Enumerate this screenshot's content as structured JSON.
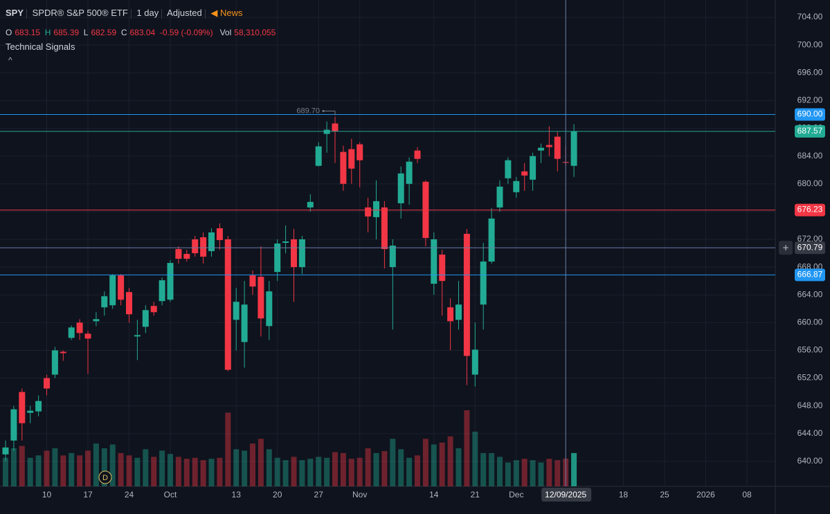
{
  "header": {
    "symbol": "SPY",
    "name": "SPDR® S&P 500® ETF",
    "interval": "1 day",
    "adjustment": "Adjusted",
    "news": "News"
  },
  "legend": {
    "o_label": "O",
    "o": "683.15",
    "h_label": "H",
    "h": "685.39",
    "l_label": "L",
    "l": "682.59",
    "c_label": "C",
    "c": "683.04",
    "change": "-0.59 (-0.09%)",
    "vol_label": "Vol",
    "vol": "58,310,055"
  },
  "indicator": "Technical Signals",
  "chart_data": {
    "type": "candlestick",
    "categories": [
      null,
      null,
      null,
      null,
      null,
      "10",
      null,
      null,
      null,
      null,
      "17",
      null,
      null,
      null,
      null,
      "24",
      null,
      null,
      null,
      null,
      "Oct",
      null,
      null,
      null,
      null,
      null,
      null,
      null,
      "13",
      null,
      null,
      null,
      null,
      "20",
      null,
      null,
      null,
      null,
      "27",
      null,
      null,
      null,
      null,
      "Nov",
      null,
      null,
      null,
      null,
      null,
      null,
      null,
      null,
      "14",
      null,
      null,
      null,
      null,
      "21",
      null,
      null,
      null,
      null,
      "Dec",
      null,
      null,
      null,
      null,
      null,
      "12/09/2025",
      null,
      null,
      null,
      null,
      null,
      null,
      "18",
      null,
      null,
      null,
      null,
      "25",
      null,
      null,
      null,
      null,
      "2026",
      null,
      null,
      null,
      null,
      "08"
    ],
    "open": [
      641,
      643,
      650,
      647,
      647.2,
      652,
      652.5,
      655.8,
      657.8,
      660,
      658.4,
      660.2,
      662.2,
      662.5,
      666.8,
      664.4,
      658,
      659.4,
      662.4,
      663.1,
      663.3,
      670.6,
      669.9,
      672,
      672.3,
      670.3,
      673.6,
      672,
      660.4,
      657.2,
      666.8,
      666.6,
      659.5,
      667.3,
      671.5,
      672,
      668,
      676.6,
      682.6,
      687.2,
      688.7,
      684.6,
      685,
      685.7,
      676.6,
      675.2,
      676.6,
      668,
      677.2,
      680,
      684.8,
      680.3,
      665.6,
      669.8,
      662.2,
      660.4,
      672.8,
      652.5,
      662.6,
      668.8,
      676.6,
      680.8,
      678.8,
      681.8,
      680.6,
      684.8,
      685.6,
      686.8,
      683.15,
      682.6,
      null,
      null,
      null,
      null,
      null,
      null,
      null,
      null,
      null,
      null,
      null,
      null,
      null,
      null,
      null,
      null,
      null,
      null,
      null,
      null,
      null
    ],
    "high": [
      643,
      648,
      650.5,
      648,
      649.5,
      652.5,
      656.5,
      656,
      659.6,
      660.5,
      658.8,
      661.5,
      664.5,
      667,
      667,
      665,
      660.4,
      662.5,
      663,
      666.5,
      669,
      671,
      670.5,
      672.5,
      673,
      673.6,
      674.3,
      672.5,
      665,
      666,
      667.5,
      671,
      666,
      672,
      674,
      673.5,
      672.5,
      678.5,
      686,
      689,
      689.7,
      685.5,
      686.5,
      686,
      678,
      680.5,
      677.5,
      672,
      682.5,
      683.8,
      685.3,
      680.5,
      673,
      670.5,
      663.5,
      666,
      673.5,
      660,
      671.5,
      676.5,
      680.5,
      683.8,
      681,
      683,
      684.5,
      685.8,
      688.3,
      687.5,
      685.39,
      688.6,
      null,
      null,
      null,
      null,
      null,
      null,
      null,
      null,
      null,
      null,
      null,
      null,
      null,
      null,
      null,
      null,
      null,
      null,
      null,
      null,
      null
    ],
    "low": [
      640,
      641.5,
      643,
      645.5,
      646.5,
      649.5,
      652,
      654.5,
      657.5,
      657.5,
      652.6,
      659.5,
      661,
      662,
      662.5,
      660,
      654.6,
      658.5,
      661,
      662.5,
      663,
      668.5,
      668.8,
      669.5,
      668.5,
      669.5,
      670.5,
      653,
      656,
      653.5,
      664,
      658,
      657.5,
      666,
      670,
      663,
      667,
      676,
      682.5,
      684.5,
      683,
      679,
      680,
      679.5,
      673,
      672,
      667.8,
      659,
      675,
      677,
      683,
      671,
      664,
      661,
      656,
      659,
      651,
      650.8,
      659,
      668.5,
      676,
      680,
      678,
      679,
      679,
      683,
      684,
      681.8,
      682.59,
      681,
      null,
      null,
      null,
      null,
      null,
      null,
      null,
      null,
      null,
      null,
      null,
      null,
      null,
      null,
      null,
      null,
      null,
      null,
      null,
      null,
      null
    ],
    "close": [
      642,
      647.5,
      645.5,
      647.3,
      648.7,
      650.5,
      656,
      655.6,
      659.3,
      658.5,
      657.7,
      660.5,
      663.8,
      666.8,
      663.3,
      661.2,
      658.2,
      661.8,
      661.5,
      666.1,
      668.6,
      669.2,
      669.2,
      670,
      669.5,
      673,
      671.9,
      653.2,
      663,
      662.6,
      665.2,
      660.6,
      664.5,
      671.4,
      671.7,
      668,
      672,
      677.4,
      685.4,
      687.8,
      687.6,
      680,
      682.2,
      683.4,
      675.3,
      677.5,
      670.6,
      671.1,
      681.5,
      683.2,
      683.6,
      672.2,
      672,
      666,
      660.2,
      662.6,
      655.2,
      656.1,
      668.8,
      675,
      679.6,
      683.4,
      680.4,
      681.2,
      684,
      685.2,
      685.3,
      683.6,
      683.04,
      687.57,
      null,
      null,
      null,
      null,
      null,
      null,
      null,
      null,
      null,
      null,
      null,
      null,
      null,
      null,
      null,
      null,
      null,
      null,
      null,
      null,
      null
    ],
    "volume": [
      60000000,
      80000000,
      85000000,
      60000000,
      65000000,
      75000000,
      80000000,
      65000000,
      70000000,
      65000000,
      75000000,
      90000000,
      80000000,
      88000000,
      70000000,
      65000000,
      60000000,
      78000000,
      62000000,
      75000000,
      68000000,
      62000000,
      58000000,
      60000000,
      55000000,
      58000000,
      60000000,
      155000000,
      78000000,
      75000000,
      90000000,
      100000000,
      78000000,
      60000000,
      55000000,
      62000000,
      55000000,
      58000000,
      62000000,
      60000000,
      72000000,
      70000000,
      58000000,
      60000000,
      80000000,
      70000000,
      74000000,
      100000000,
      78000000,
      60000000,
      65000000,
      100000000,
      88000000,
      92000000,
      105000000,
      80000000,
      160000000,
      115000000,
      70000000,
      70000000,
      62000000,
      50000000,
      55000000,
      58000000,
      55000000,
      50000000,
      58000000,
      55000000,
      58310055,
      70000000,
      null,
      null,
      null,
      null,
      null,
      null,
      null,
      null,
      null,
      null,
      null,
      null,
      null,
      null,
      null,
      null,
      null,
      null,
      null,
      null,
      null
    ],
    "ylim": [
      636.4,
      706.5
    ],
    "yticks": [
      {
        "value": 640,
        "label": "640.00"
      },
      {
        "value": 644,
        "label": "644.00"
      },
      {
        "value": 648,
        "label": "648.00"
      },
      {
        "value": 652,
        "label": "652.00"
      },
      {
        "value": 656,
        "label": "656.00"
      },
      {
        "value": 660,
        "label": "660.00"
      },
      {
        "value": 664,
        "label": "664.00"
      },
      {
        "value": 668,
        "label": "668.00"
      },
      {
        "value": 672,
        "label": "672.00"
      },
      {
        "value": 676,
        "label": "676.00"
      },
      {
        "value": 680,
        "label": "680.00"
      },
      {
        "value": 684,
        "label": "684.00"
      },
      {
        "value": 688,
        "label": "688.00"
      },
      {
        "value": 692,
        "label": "692.00"
      },
      {
        "value": 696,
        "label": "696.00"
      },
      {
        "value": 700,
        "label": "700.00"
      },
      {
        "value": 704,
        "label": "704.00"
      }
    ],
    "grid": true,
    "up_color": "#22ab94",
    "down_color": "#f23645",
    "price_lines": [
      {
        "value": 690,
        "label": "690.00",
        "color": "#2196f3"
      },
      {
        "value": 687.57,
        "label": "687.57",
        "color": "#22ab94"
      },
      {
        "value": 676.23,
        "label": "676.23",
        "color": "#f23645"
      },
      {
        "value": 666.87,
        "label": "666.87",
        "color": "#2196f3"
      }
    ],
    "high_marker": {
      "value": 689.7,
      "label": "689.70"
    },
    "crosshair": {
      "value": 670.79,
      "label": "670.79"
    },
    "dividend_marker": "D"
  }
}
